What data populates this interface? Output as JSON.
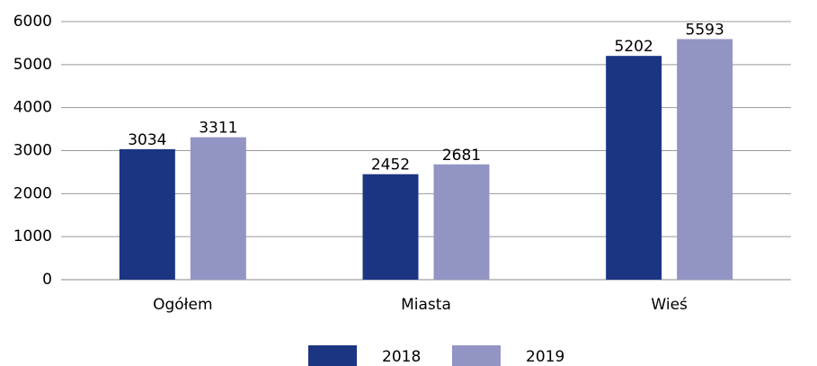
{
  "chart_data": {
    "type": "bar",
    "categories": [
      "Ogółem",
      "Miasta",
      "Wieś"
    ],
    "series": [
      {
        "name": "2018",
        "color": "#1b3583",
        "values": [
          3034,
          2452,
          5202
        ]
      },
      {
        "name": "2019",
        "color": "#9295c3",
        "values": [
          3311,
          2681,
          5593
        ]
      }
    ],
    "ylim": [
      0,
      6000
    ],
    "yticks": [
      0,
      1000,
      2000,
      3000,
      4000,
      5000,
      6000
    ],
    "grid": true,
    "legend": "bottom"
  }
}
